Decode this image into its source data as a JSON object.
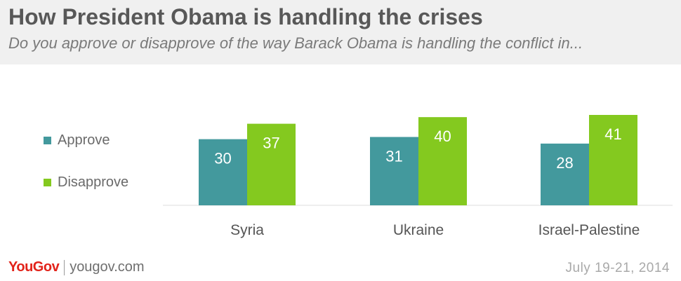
{
  "header": {
    "title": "How President Obama is handling the crises",
    "subtitle": "Do you approve or disapprove of the way Barack Obama is handling the conflict in..."
  },
  "colors": {
    "approve": "#43999d",
    "disapprove": "#84c91f",
    "value_label": "#ffffff",
    "category_label": "#555555",
    "baseline": "#dddddd"
  },
  "chart_data": {
    "type": "bar",
    "title": "How President Obama is handling the crises",
    "subtitle": "Do you approve or disapprove of the way Barack Obama is handling the conflict in...",
    "categories": [
      "Syria",
      "Ukraine",
      "Israel-Palestine"
    ],
    "series": [
      {
        "name": "Approve",
        "values": [
          30,
          31,
          28
        ]
      },
      {
        "name": "Disapprove",
        "values": [
          37,
          40,
          41
        ]
      }
    ],
    "xlabel": "",
    "ylabel": "",
    "ylim": [
      0,
      41
    ],
    "grid": false,
    "legend": "left"
  },
  "footer": {
    "logo": "YouGov",
    "site": "yougov.com",
    "date": "July 19-21, 2014"
  }
}
